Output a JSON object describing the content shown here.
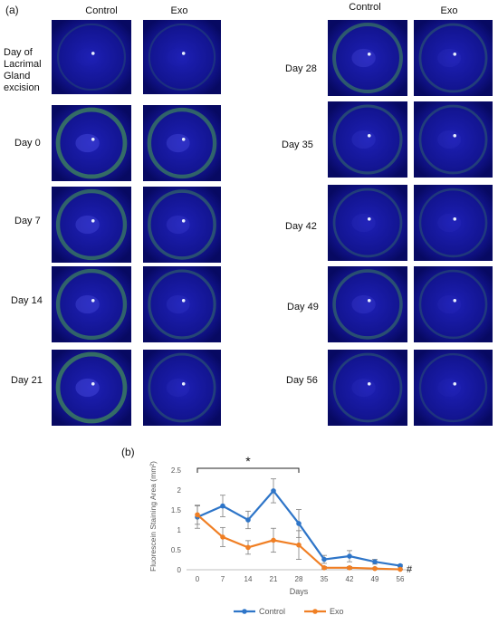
{
  "figure": {
    "panel_a_label": "(a)",
    "panel_b_label": "(b)",
    "left_column": {
      "headers": [
        "Control",
        "Exo"
      ],
      "rows": [
        "Day of Lacrimal Gland excision",
        "Day 0",
        "Day 7",
        "Day 14",
        "Day 21"
      ]
    },
    "right_column": {
      "headers": [
        "Control",
        "Exo"
      ],
      "rows": [
        "Day 28",
        "Day 35",
        "Day 42",
        "Day 49",
        "Day 56"
      ]
    },
    "colors": {
      "control": "#2e75c8",
      "exo": "#f07f24",
      "eye_bg": "#0c0f8e",
      "stain": "#4fb04a"
    }
  },
  "chart_data": {
    "type": "line",
    "xlabel": "Days",
    "ylabel": "Fluorescein Staining Area (mm²)",
    "categories": [
      0,
      7,
      14,
      21,
      28,
      35,
      42,
      49,
      56
    ],
    "ylim": [
      0,
      2.5
    ],
    "yticks": [
      "0",
      "0.5",
      "1",
      "1.5",
      "2",
      "2.5"
    ],
    "grid": false,
    "legend": "bottom",
    "series": [
      {
        "name": "Control",
        "color": "#2e75c8",
        "values": [
          1.32,
          1.6,
          1.25,
          1.98,
          1.16,
          0.26,
          0.34,
          0.2,
          0.1
        ],
        "errors": [
          0.28,
          0.27,
          0.22,
          0.3,
          0.35,
          0.1,
          0.14,
          0.06,
          0.03
        ]
      },
      {
        "name": "Exo",
        "color": "#f07f24",
        "values": [
          1.38,
          0.82,
          0.56,
          0.74,
          0.62,
          0.05,
          0.05,
          0.03,
          0.01
        ],
        "errors": [
          0.24,
          0.24,
          0.17,
          0.3,
          0.36,
          0.03,
          0.03,
          0.02,
          0.01
        ]
      }
    ],
    "annotations": {
      "significance": "*",
      "end_marker": "#"
    }
  }
}
